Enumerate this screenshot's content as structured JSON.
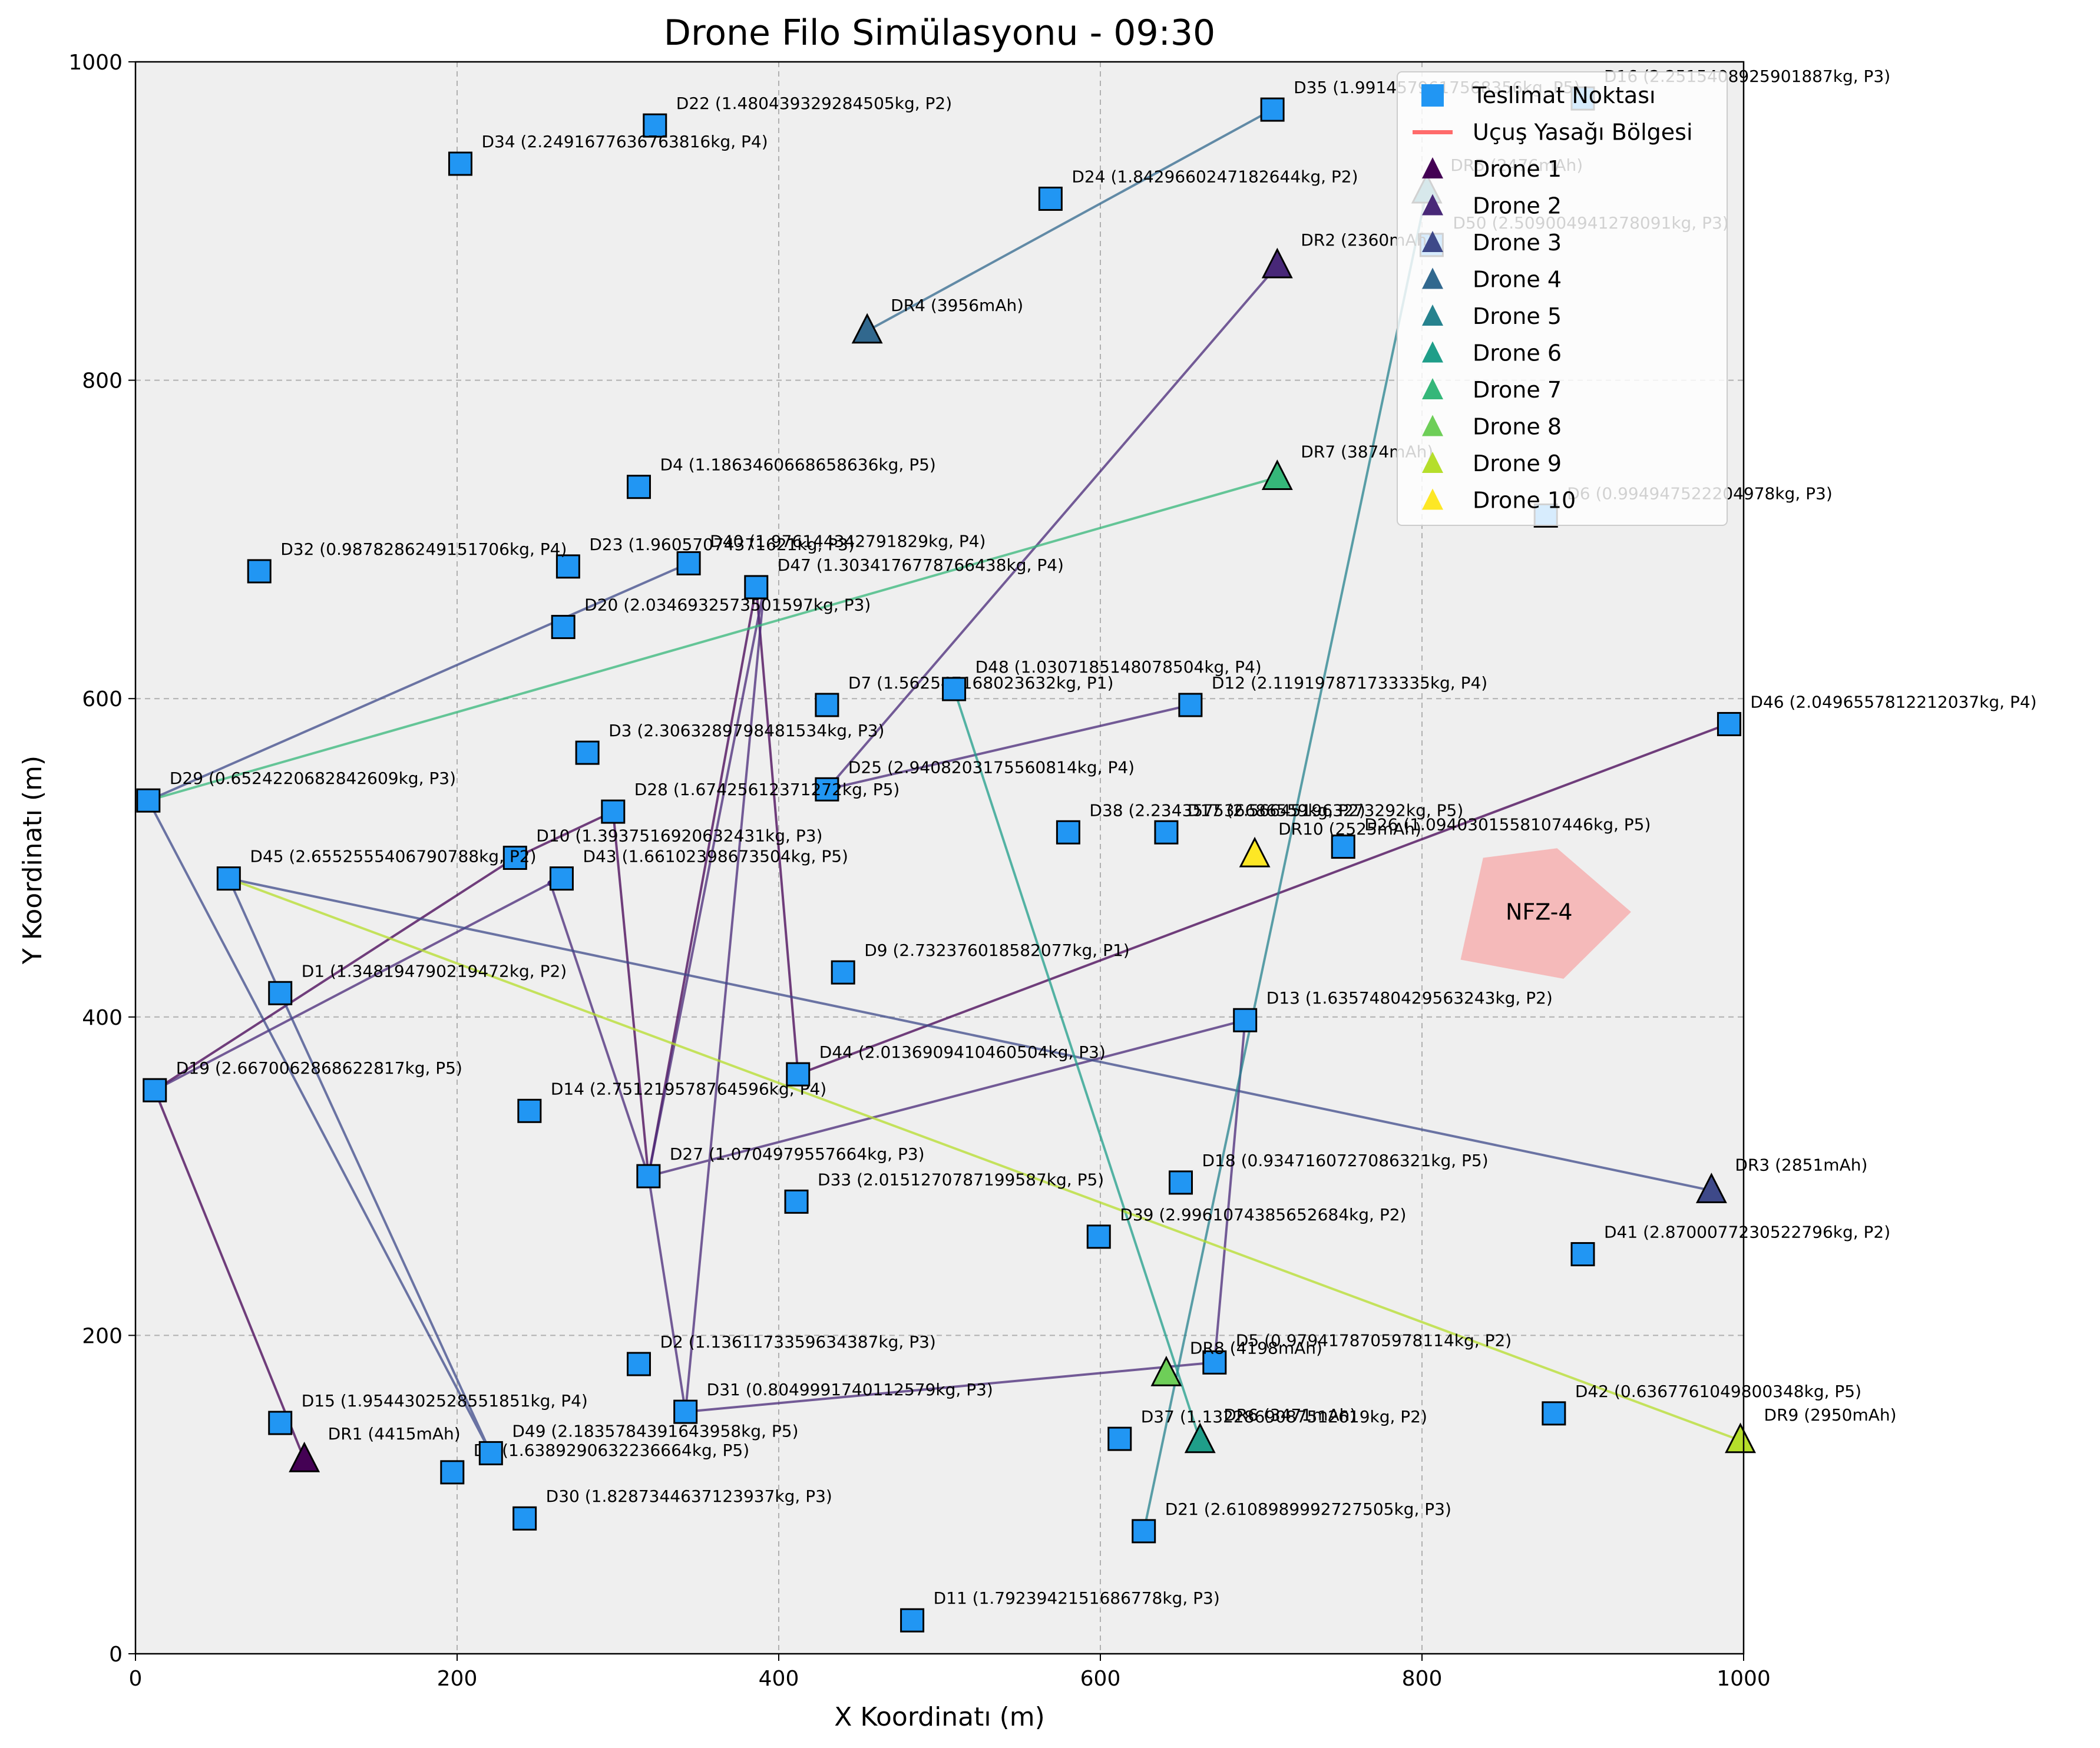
{
  "chart_data": {
    "type": "scatter",
    "title": "Drone Filo Simülasyonu - 09:30",
    "xlabel": "X Koordinatı (m)",
    "ylabel": "Y Koordinatı (m)",
    "xlim": [
      0,
      1000
    ],
    "ylim": [
      0,
      1000
    ],
    "grid": true,
    "xticks": [
      "0",
      "200",
      "400",
      "600",
      "800",
      "1000"
    ],
    "yticks": [
      "0",
      "200",
      "400",
      "600",
      "800",
      "1000"
    ],
    "legend_position": "top-right",
    "legend": [
      {
        "label": "Teslimat Noktası",
        "kind": "square",
        "color": "#2196F3"
      },
      {
        "label": "Uçuş Yasağı Bölgesi",
        "kind": "line",
        "color": "#ff6b6b"
      },
      {
        "label": "Drone 1",
        "kind": "triangle",
        "color": "#440154"
      },
      {
        "label": "Drone 2",
        "kind": "triangle",
        "color": "#482878"
      },
      {
        "label": "Drone 3",
        "kind": "triangle",
        "color": "#3e4989"
      },
      {
        "label": "Drone 4",
        "kind": "triangle",
        "color": "#31688e"
      },
      {
        "label": "Drone 5",
        "kind": "triangle",
        "color": "#26828e"
      },
      {
        "label": "Drone 6",
        "kind": "triangle",
        "color": "#1f9e89"
      },
      {
        "label": "Drone 7",
        "kind": "triangle",
        "color": "#35b779"
      },
      {
        "label": "Drone 8",
        "kind": "triangle",
        "color": "#6ece58"
      },
      {
        "label": "Drone 9",
        "kind": "triangle",
        "color": "#b5de2b"
      },
      {
        "label": "Drone 10",
        "kind": "triangle",
        "color": "#fde725"
      }
    ],
    "deliveries": [
      {
        "x": 90,
        "y": 415,
        "label": "D1 (1.348194790219472kg, P2)"
      },
      {
        "x": 313,
        "y": 182,
        "label": "D2 (1.1361173359634387kg, P3)"
      },
      {
        "x": 281,
        "y": 566,
        "label": "D3 (2.3063289798481534kg, P3)"
      },
      {
        "x": 313,
        "y": 733,
        "label": "D4 (1.1863460668658636kg, P5)"
      },
      {
        "x": 671,
        "y": 183,
        "label": "D5 (0.979417870597811​4kg, P2)"
      },
      {
        "x": 877,
        "y": 715,
        "label": "D6 (0.9949475222049​78kg, P3)"
      },
      {
        "x": 430,
        "y": 596,
        "label": "D7 (1.5625471680236​32kg, P1)"
      },
      {
        "x": 197,
        "y": 114,
        "label": "D8 (1.6389290632236664kg, P5)"
      },
      {
        "x": 440,
        "y": 428,
        "label": "D9 (2.732376018582077kg, P1)"
      },
      {
        "x": 236,
        "y": 500,
        "label": "D10 (1.3937516920632431kg, P3)"
      },
      {
        "x": 483,
        "y": 21,
        "label": "D11 (1.7923942151686778kg, P3)"
      },
      {
        "x": 656,
        "y": 596,
        "label": "D12 (2.119197871733335kg, P4)"
      },
      {
        "x": 690,
        "y": 398,
        "label": "D13 (1.6357480429563243kg, P2)"
      },
      {
        "x": 245,
        "y": 341,
        "label": "D14 (2.751219578764596kg, P4)"
      },
      {
        "x": 90,
        "y": 145,
        "label": "D15 (1.9544302528551851kg, P4)"
      },
      {
        "x": 900,
        "y": 977,
        "label": "D16 (2.2515408925901887kg, P3)"
      },
      {
        "x": 641,
        "y": 516,
        "label": "D17 (2.566451963273292kg, P5)"
      },
      {
        "x": 650,
        "y": 296,
        "label": "D18 (0.9347160727086321kg, P5)"
      },
      {
        "x": 12,
        "y": 354,
        "label": "D19 (2.6670062868622817kg, P5)"
      },
      {
        "x": 266,
        "y": 645,
        "label": "D20 (2.0346932573501597kg, P3)"
      },
      {
        "x": 627,
        "y": 77,
        "label": "D21 (2.6108989992727505kg, P3)"
      },
      {
        "x": 323,
        "y": 960,
        "label": "D22 (1.480439329284505kg, P2)"
      },
      {
        "x": 269,
        "y": 683,
        "label": "D23 (1.9605707437162​1kg, P3)"
      },
      {
        "x": 569,
        "y": 914,
        "label": "D24 (1.8429660247182644kg, P2)"
      },
      {
        "x": 430,
        "y": 543,
        "label": "D25 (2.9408203175560814kg, P4)"
      },
      {
        "x": 751,
        "y": 507,
        "label": "D26 (1.0940301558107446kg, P5)"
      },
      {
        "x": 319,
        "y": 300,
        "label": "D27 (1.0704979557664kg, P3)"
      },
      {
        "x": 297,
        "y": 529,
        "label": "D28 (1.6742561237​1272kg, P5)"
      },
      {
        "x": 8,
        "y": 536,
        "label": "D29 (0.6524220682842609kg, P3)"
      },
      {
        "x": 242,
        "y": 85,
        "label": "D30 (1.8287344637123937kg, P3)"
      },
      {
        "x": 342,
        "y": 152,
        "label": "D31 (0.8049991740112579kg, P3)"
      },
      {
        "x": 77,
        "y": 680,
        "label": "D32 (0.9878286249151706kg, P4)"
      },
      {
        "x": 411,
        "y": 284,
        "label": "D33 (2.0151270787199587kg, P5)"
      },
      {
        "x": 202,
        "y": 936,
        "label": "D34 (2.2491677636763816kg, P4)"
      },
      {
        "x": 707,
        "y": 970,
        "label": "D35 (1.9914579617568356kg, P5)"
      },
      {
        "x": 580,
        "y": 516,
        "label": "D38 (2.2343575366​8655​9kg, P2)"
      },
      {
        "x": 612,
        "y": 135,
        "label": "D37 (1.1322869087512619kg, P2)"
      },
      {
        "x": 599,
        "y": 262,
        "label": "D39 (2.9961074385652684kg, P2)"
      },
      {
        "x": 344,
        "y": 685,
        "label": "D40 (1.9761443​42791829kg, P4)"
      },
      {
        "x": 900,
        "y": 251,
        "label": "D41 (2.8700077230522796kg, P2)"
      },
      {
        "x": 882,
        "y": 151,
        "label": "D42 (0.6367761049800348kg, P5)"
      },
      {
        "x": 265,
        "y": 487,
        "label": "D43 (1.6610239867​3504kg, P5)"
      },
      {
        "x": 412,
        "y": 364,
        "label": "D44 (2.0136909410460504kg, P3)"
      },
      {
        "x": 58,
        "y": 487,
        "label": "D45 (2.6552555406790788kg, P2)"
      },
      {
        "x": 991,
        "y": 584,
        "label": "D46 (2.0496557812212037kg, P4)"
      },
      {
        "x": 386,
        "y": 670,
        "label": "D47 (1.3034176778766438kg, P4)"
      },
      {
        "x": 509,
        "y": 606,
        "label": "D48 (1.0307185148078504kg, P4)"
      },
      {
        "x": 221,
        "y": 126,
        "label": "D49 (2.1835784391643958kg, P5)"
      },
      {
        "x": 806,
        "y": 885,
        "label": "D50 (2.509004941278091kg, P3)"
      }
    ],
    "drones": [
      {
        "id": "DR1",
        "x": 105,
        "y": 122,
        "battery": "DR1 (4415mAh)",
        "color": "#440154"
      },
      {
        "id": "DR2",
        "x": 710,
        "y": 872,
        "battery": "DR2 (2360mAh)",
        "color": "#482878"
      },
      {
        "id": "DR3",
        "x": 980,
        "y": 291,
        "battery": "DR3 (2851mAh)",
        "color": "#3e4989"
      },
      {
        "id": "DR4",
        "x": 455,
        "y": 831,
        "battery": "DR4 (3956mAh)",
        "color": "#31688e"
      },
      {
        "id": "DR5",
        "x": 803,
        "y": 919,
        "battery": "DR5 (2476mAh)",
        "color": "#26828e"
      },
      {
        "id": "DR6",
        "x": 662,
        "y": 134,
        "battery": "DR6 (3471mAh)",
        "color": "#1f9e89"
      },
      {
        "id": "DR7",
        "x": 710,
        "y": 739,
        "battery": "DR7 (3874mAh)",
        "color": "#35b779"
      },
      {
        "id": "DR8",
        "x": 641,
        "y": 176,
        "battery": "DR8 (4198mAh)",
        "color": "#6ece58"
      },
      {
        "id": "DR9",
        "x": 998,
        "y": 134,
        "battery": "DR9 (2950mAh)",
        "color": "#b5de2b"
      },
      {
        "id": "DR10",
        "x": 696,
        "y": 502,
        "battery": "DR10 (2525mAh)",
        "color": "#fde725"
      }
    ],
    "routes": [
      {
        "drone": "Drone 1",
        "color": "#440154",
        "points": [
          [
            105,
            122
          ],
          [
            12,
            354
          ],
          [
            236,
            500
          ],
          [
            297,
            529
          ],
          [
            319,
            300
          ],
          [
            386,
            670
          ],
          [
            412,
            364
          ],
          [
            990,
            584
          ]
        ]
      },
      {
        "drone": "Drone 2",
        "color": "#482878",
        "points": [
          [
            710,
            872
          ],
          [
            430,
            543
          ],
          [
            656,
            596
          ]
        ]
      },
      {
        "drone": "Drone 2b",
        "color": "#482878",
        "points": [
          [
            12,
            354
          ],
          [
            258,
            484
          ],
          [
            319,
            300
          ],
          [
            342,
            152
          ],
          [
            671,
            183
          ],
          [
            690,
            398
          ],
          [
            319,
            300
          ],
          [
            391,
            670
          ],
          [
            342,
            152
          ]
        ]
      },
      {
        "drone": "Drone 3",
        "color": "#3e4989",
        "points": [
          [
            980,
            291
          ],
          [
            58,
            487
          ],
          [
            90,
            415
          ],
          [
            221,
            126
          ],
          [
            8,
            536
          ],
          [
            344,
            685
          ]
        ]
      },
      {
        "drone": "Drone 4",
        "color": "#31688e",
        "points": [
          [
            455,
            831
          ],
          [
            707,
            970
          ]
        ]
      },
      {
        "drone": "Drone 5",
        "color": "#26828e",
        "points": [
          [
            803,
            919
          ],
          [
            627,
            77
          ]
        ]
      },
      {
        "drone": "Drone 6",
        "color": "#1f9e89",
        "points": [
          [
            662,
            134
          ],
          [
            509,
            606
          ]
        ]
      },
      {
        "drone": "Drone 7",
        "color": "#35b779",
        "points": [
          [
            710,
            739
          ],
          [
            8,
            536
          ]
        ]
      },
      {
        "drone": "Drone 9",
        "color": "#b5de2b",
        "points": [
          [
            998,
            134
          ],
          [
            58,
            487
          ]
        ]
      }
    ],
    "nfz": {
      "label": "NFZ-4",
      "polygon": [
        [
          824,
          436
        ],
        [
          838,
          500
        ],
        [
          884,
          506
        ],
        [
          930,
          466
        ],
        [
          888,
          424
        ]
      ],
      "color": "#ff6b6b"
    }
  }
}
